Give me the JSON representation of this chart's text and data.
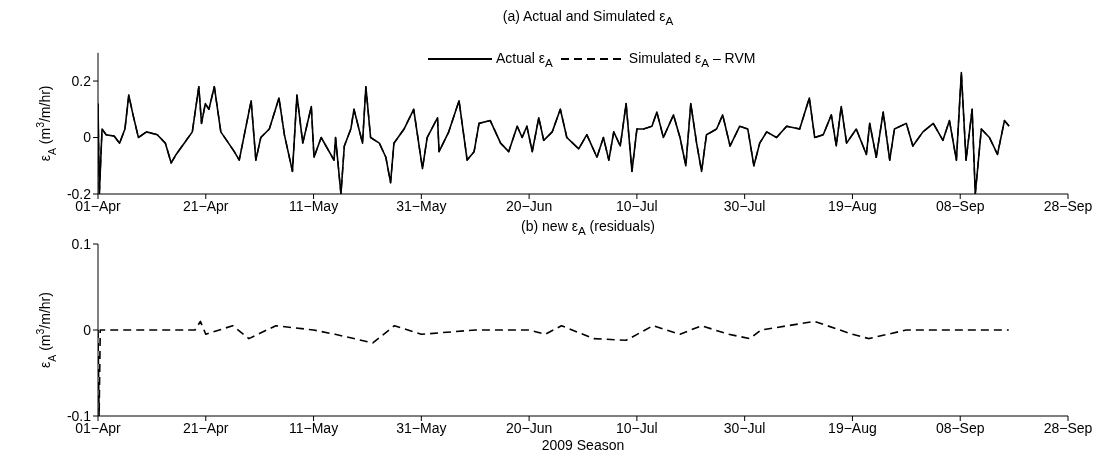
{
  "chart_data": [
    {
      "type": "line",
      "title": "(a) Actual and Simulated ε$_{A}$",
      "ylabel": "ε$_{A}$ (m$^{3}$/m/hr)",
      "legend": "top",
      "xlim": [
        "2009-04-01",
        "2009-09-28"
      ],
      "xticks": [
        {
          "value": "2009-04-01",
          "label": "01−Apr"
        },
        {
          "value": "2009-04-21",
          "label": "21−Apr"
        },
        {
          "value": "2009-05-11",
          "label": "11−May"
        },
        {
          "value": "2009-05-31",
          "label": "31−May"
        },
        {
          "value": "2009-06-20",
          "label": "20−Jun"
        },
        {
          "value": "2009-07-10",
          "label": "10−Jul"
        },
        {
          "value": "2009-07-30",
          "label": "30−Jul"
        },
        {
          "value": "2009-08-19",
          "label": "19−Aug"
        },
        {
          "value": "2009-09-08",
          "label": "08−Sep"
        },
        {
          "value": "2009-09-28",
          "label": "28−Sep"
        }
      ],
      "ylim": [
        -0.2,
        0.3
      ],
      "yticks": [
        -0.2,
        0,
        0.2
      ],
      "x": [
        "2009-04-01T00:00",
        "2009-04-01T06:00",
        "2009-04-01T18:00",
        "2009-04-02T12:00",
        "2009-04-04T00:00",
        "2009-04-05T00:00",
        "2009-04-06T00:00",
        "2009-04-06T17:00",
        "2009-04-07T12:00",
        "2009-04-08T12:00",
        "2009-04-10T00:00",
        "2009-04-12T00:00",
        "2009-04-13T12:00",
        "2009-04-14T14:00",
        "2009-04-15T12:00",
        "2009-04-17T00:00",
        "2009-04-18T12:00",
        "2009-04-19T17:00",
        "2009-04-20T05:00",
        "2009-04-20T22:00",
        "2009-04-21T14:00",
        "2009-04-22T14:00",
        "2009-04-23T19:00",
        "2009-04-26T07:00",
        "2009-04-27T05:00",
        "2009-04-29T10:00",
        "2009-04-30T07:00",
        "2009-05-01T05:00",
        "2009-05-02T19:00",
        "2009-05-04T14:00",
        "2009-05-05T14:00",
        "2009-05-07T02:00",
        "2009-05-07T22:00",
        "2009-05-09T00:00",
        "2009-05-10T14:00",
        "2009-05-11T02:00",
        "2009-05-12T10:00",
        "2009-05-14T19:00",
        "2009-05-15T02:00",
        "2009-05-16T02:00",
        "2009-05-16T17:00",
        "2009-05-17T22:00",
        "2009-05-18T12:00",
        "2009-05-20T02:00",
        "2009-05-20T17:00",
        "2009-05-21T14:00",
        "2009-05-23T05:00",
        "2009-05-24T10:00",
        "2009-05-25T07:00",
        "2009-05-25T22:00",
        "2009-05-27T19:00",
        "2009-05-29T14:00",
        "2009-05-31T05:00",
        "2009-06-01T02:00",
        "2009-06-03T00:00",
        "2009-06-03T07:00",
        "2009-06-05T02:00",
        "2009-06-07T00:00",
        "2009-06-08T12:00",
        "2009-06-09T19:00",
        "2009-06-10T17:00",
        "2009-06-12T19:00",
        "2009-06-14T17:00",
        "2009-06-16T05:00",
        "2009-06-17T19:00",
        "2009-06-18T17:00",
        "2009-06-19T14:00",
        "2009-06-20T14:00",
        "2009-06-21T19:00",
        "2009-06-22T17:00",
        "2009-06-24T07:00",
        "2009-06-25T19:00",
        "2009-06-27T00:00",
        "2009-06-29T05:00",
        "2009-06-30T17:00",
        "2009-07-02T14:00",
        "2009-07-03T19:00",
        "2009-07-04T19:00",
        "2009-07-05T17:00",
        "2009-07-06T22:00",
        "2009-07-08T00:00",
        "2009-07-09T02:00",
        "2009-07-10T00:00",
        "2009-07-11T05:00",
        "2009-07-12T19:00",
        "2009-07-13T17:00",
        "2009-07-14T22:00",
        "2009-07-16T19:00",
        "2009-07-18T00:00",
        "2009-07-19T02:00",
        "2009-07-20T00:00",
        "2009-07-21T02:00",
        "2009-07-22T00:00",
        "2009-07-22T22:00",
        "2009-07-24T19:00",
        "2009-07-25T22:00",
        "2009-07-27T07:00",
        "2009-07-29T02:00",
        "2009-07-30T14:00",
        "2009-07-31T17:00",
        "2009-08-01T19:00",
        "2009-08-03T02:00",
        "2009-08-04T22:00",
        "2009-08-06T19:00",
        "2009-08-09T05:00",
        "2009-08-11T00:00",
        "2009-08-12T00:00",
        "2009-08-13T14:00",
        "2009-08-15T02:00",
        "2009-08-16T00:00",
        "2009-08-16T22:00",
        "2009-08-17T22:00",
        "2009-08-19T17:00",
        "2009-08-21T14:00",
        "2009-08-22T05:00",
        "2009-08-23T10:00",
        "2009-08-24T17:00",
        "2009-08-25T22:00",
        "2009-08-26T19:00",
        "2009-08-29T00:00",
        "2009-08-30T05:00",
        "2009-09-01T02:00",
        "2009-09-03T00:00",
        "2009-09-04T19:00",
        "2009-09-06T00:00",
        "2009-09-07T07:00",
        "2009-09-08T05:00",
        "2009-09-09T02:00",
        "2009-09-10T05:00",
        "2009-09-10T19:00",
        "2009-09-11T22:00",
        "2009-09-13T10:00",
        "2009-09-14T22:00",
        "2009-09-16T05:00",
        "2009-09-17T02:00"
      ],
      "series": [
        {
          "name": "Actual ε$_{A}$",
          "color": "#000000",
          "line_style": "solid",
          "values": [
            0.12,
            -0.2,
            0.03,
            0.01,
            0.005,
            -0.02,
            0.03,
            0.15,
            0.08,
            0.0,
            0.02,
            0.01,
            -0.02,
            -0.09,
            -0.06,
            -0.02,
            0.02,
            0.18,
            0.05,
            0.12,
            0.1,
            0.18,
            0.02,
            -0.05,
            -0.08,
            0.13,
            -0.08,
            0.0,
            0.03,
            0.14,
            0.01,
            -0.12,
            0.15,
            -0.02,
            0.11,
            -0.07,
            0.0,
            -0.08,
            0.0,
            -0.2,
            -0.03,
            0.03,
            0.1,
            -0.02,
            0.18,
            0.0,
            -0.02,
            -0.07,
            -0.16,
            -0.02,
            0.03,
            0.1,
            -0.11,
            0.0,
            0.07,
            -0.05,
            0.02,
            0.13,
            -0.08,
            -0.05,
            0.05,
            0.06,
            -0.02,
            -0.05,
            0.04,
            0.0,
            0.04,
            -0.05,
            0.07,
            -0.01,
            0.02,
            0.1,
            0.0,
            -0.04,
            0.01,
            -0.07,
            0.0,
            -0.08,
            0.02,
            -0.03,
            0.12,
            -0.12,
            0.03,
            0.03,
            0.04,
            0.09,
            0.0,
            0.08,
            0.0,
            -0.1,
            0.12,
            -0.02,
            -0.12,
            0.01,
            0.03,
            0.08,
            -0.03,
            0.04,
            0.03,
            -0.1,
            -0.02,
            0.02,
            0.0,
            0.04,
            0.03,
            0.14,
            0.0,
            0.01,
            0.08,
            -0.03,
            0.11,
            -0.02,
            0.03,
            -0.06,
            0.05,
            -0.07,
            0.09,
            -0.08,
            0.03,
            0.05,
            -0.03,
            0.02,
            0.05,
            -0.01,
            0.06,
            -0.08,
            0.23,
            -0.08,
            0.1,
            -0.2,
            0.03,
            0.0,
            -0.06,
            0.06,
            0.04
          ]
        },
        {
          "name": "Simulated ε$_{A}$ – RVM",
          "color": "#000000",
          "line_style": "dashed",
          "values": [
            0.12,
            -0.2,
            0.03,
            0.01,
            0.005,
            -0.02,
            0.03,
            0.15,
            0.08,
            0.0,
            0.02,
            0.01,
            -0.02,
            -0.09,
            -0.06,
            -0.02,
            0.02,
            0.18,
            0.05,
            0.12,
            0.1,
            0.18,
            0.02,
            -0.05,
            -0.08,
            0.13,
            -0.08,
            0.0,
            0.03,
            0.14,
            0.01,
            -0.12,
            0.15,
            -0.02,
            0.11,
            -0.07,
            0.0,
            -0.08,
            0.0,
            -0.2,
            -0.03,
            0.03,
            0.1,
            -0.02,
            0.18,
            0.0,
            -0.02,
            -0.07,
            -0.16,
            -0.02,
            0.03,
            0.1,
            -0.11,
            0.0,
            0.07,
            -0.05,
            0.02,
            0.13,
            -0.08,
            -0.05,
            0.05,
            0.06,
            -0.02,
            -0.05,
            0.04,
            0.0,
            0.04,
            -0.05,
            0.07,
            -0.01,
            0.02,
            0.1,
            0.0,
            -0.04,
            0.01,
            -0.07,
            0.0,
            -0.08,
            0.02,
            -0.03,
            0.12,
            -0.12,
            0.03,
            0.03,
            0.04,
            0.09,
            0.0,
            0.08,
            0.0,
            -0.1,
            0.12,
            -0.02,
            -0.12,
            0.01,
            0.03,
            0.08,
            -0.03,
            0.04,
            0.03,
            -0.1,
            -0.02,
            0.02,
            0.0,
            0.04,
            0.03,
            0.14,
            0.0,
            0.01,
            0.08,
            -0.03,
            0.11,
            -0.02,
            0.03,
            -0.06,
            0.05,
            -0.07,
            0.09,
            -0.08,
            0.03,
            0.05,
            -0.03,
            0.02,
            0.05,
            -0.01,
            0.06,
            -0.08,
            0.23,
            -0.08,
            0.1,
            -0.2,
            0.03,
            0.0,
            -0.06,
            0.06,
            0.04
          ]
        }
      ]
    },
    {
      "type": "line",
      "title": "(b) new ε$_{A}$ (residuals)",
      "xlabel": "2009 Season",
      "ylabel": "ε$_{A}$ (m$^{3}$/m/hr)",
      "line_style": "dashed",
      "xlim": [
        "2009-04-01",
        "2009-09-28"
      ],
      "xticks": [
        {
          "value": "2009-04-01",
          "label": "01−Apr"
        },
        {
          "value": "2009-04-21",
          "label": "21−Apr"
        },
        {
          "value": "2009-05-11",
          "label": "11−May"
        },
        {
          "value": "2009-05-31",
          "label": "31−May"
        },
        {
          "value": "2009-06-20",
          "label": "20−Jun"
        },
        {
          "value": "2009-07-10",
          "label": "10−Jul"
        },
        {
          "value": "2009-07-30",
          "label": "30−Jul"
        },
        {
          "value": "2009-08-19",
          "label": "19−Aug"
        },
        {
          "value": "2009-09-08",
          "label": "08−Sep"
        },
        {
          "value": "2009-09-28",
          "label": "28−Sep"
        }
      ],
      "ylim": [
        -0.1,
        0.1
      ],
      "yticks": [
        -0.1,
        0,
        0.1
      ],
      "x": [
        "2009-04-01T00:00",
        "2009-04-01T05:00",
        "2009-04-01T10:00",
        "2009-04-19T00:00",
        "2009-04-20T00:00",
        "2009-04-21T00:00",
        "2009-04-26T00:00",
        "2009-04-29T00:00",
        "2009-05-04T00:00",
        "2009-05-11T00:00",
        "2009-05-15T00:00",
        "2009-05-22T00:00",
        "2009-05-26T00:00",
        "2009-05-31T00:00",
        "2009-06-10T00:00",
        "2009-06-20T00:00",
        "2009-06-23T00:00",
        "2009-06-26T00:00",
        "2009-07-02T00:00",
        "2009-07-08T00:00",
        "2009-07-13T00:00",
        "2009-07-18T00:00",
        "2009-07-22T00:00",
        "2009-07-27T00:00",
        "2009-07-31T00:00",
        "2009-08-02T00:00",
        "2009-08-12T00:00",
        "2009-08-19T00:00",
        "2009-08-22T00:00",
        "2009-08-29T00:00",
        "2009-09-08T00:00",
        "2009-09-17T00:00"
      ],
      "series": [
        {
          "color": "#000000",
          "values": [
            0,
            -0.1,
            0,
            0,
            0.01,
            -0.005,
            0.005,
            -0.01,
            0.005,
            0,
            -0.005,
            -0.015,
            0.005,
            -0.005,
            0,
            0,
            -0.005,
            0.005,
            -0.01,
            -0.012,
            0.005,
            -0.005,
            0.005,
            -0.005,
            -0.01,
            0,
            0.01,
            -0.005,
            -0.01,
            0,
            0,
            0
          ]
        }
      ]
    }
  ]
}
